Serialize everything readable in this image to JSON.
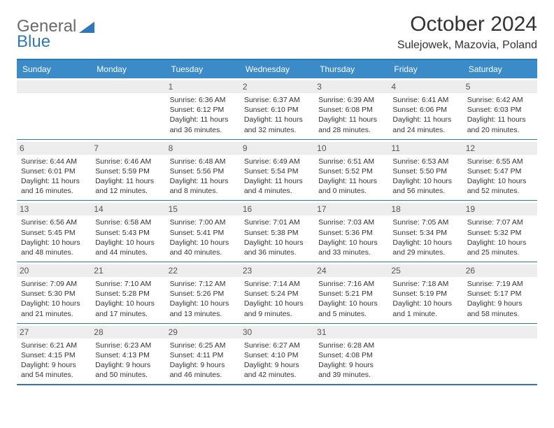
{
  "brand": {
    "part1": "General",
    "part2": "Blue"
  },
  "title": {
    "month": "October 2024",
    "location": "Sulejowek, Mazovia, Poland"
  },
  "colors": {
    "header_bg": "#3b8bc9",
    "header_border": "#2f77b6",
    "daynum_bg": "#ededed",
    "text": "#333333",
    "brand_gray": "#6a6a6a",
    "brand_blue": "#2f77b6"
  },
  "dayHeaders": [
    "Sunday",
    "Monday",
    "Tuesday",
    "Wednesday",
    "Thursday",
    "Friday",
    "Saturday"
  ],
  "weeks": [
    [
      {
        "n": "",
        "sr": "",
        "ss": "",
        "dl": ""
      },
      {
        "n": "",
        "sr": "",
        "ss": "",
        "dl": ""
      },
      {
        "n": "1",
        "sr": "Sunrise: 6:36 AM",
        "ss": "Sunset: 6:12 PM",
        "dl": "Daylight: 11 hours and 36 minutes."
      },
      {
        "n": "2",
        "sr": "Sunrise: 6:37 AM",
        "ss": "Sunset: 6:10 PM",
        "dl": "Daylight: 11 hours and 32 minutes."
      },
      {
        "n": "3",
        "sr": "Sunrise: 6:39 AM",
        "ss": "Sunset: 6:08 PM",
        "dl": "Daylight: 11 hours and 28 minutes."
      },
      {
        "n": "4",
        "sr": "Sunrise: 6:41 AM",
        "ss": "Sunset: 6:06 PM",
        "dl": "Daylight: 11 hours and 24 minutes."
      },
      {
        "n": "5",
        "sr": "Sunrise: 6:42 AM",
        "ss": "Sunset: 6:03 PM",
        "dl": "Daylight: 11 hours and 20 minutes."
      }
    ],
    [
      {
        "n": "6",
        "sr": "Sunrise: 6:44 AM",
        "ss": "Sunset: 6:01 PM",
        "dl": "Daylight: 11 hours and 16 minutes."
      },
      {
        "n": "7",
        "sr": "Sunrise: 6:46 AM",
        "ss": "Sunset: 5:59 PM",
        "dl": "Daylight: 11 hours and 12 minutes."
      },
      {
        "n": "8",
        "sr": "Sunrise: 6:48 AM",
        "ss": "Sunset: 5:56 PM",
        "dl": "Daylight: 11 hours and 8 minutes."
      },
      {
        "n": "9",
        "sr": "Sunrise: 6:49 AM",
        "ss": "Sunset: 5:54 PM",
        "dl": "Daylight: 11 hours and 4 minutes."
      },
      {
        "n": "10",
        "sr": "Sunrise: 6:51 AM",
        "ss": "Sunset: 5:52 PM",
        "dl": "Daylight: 11 hours and 0 minutes."
      },
      {
        "n": "11",
        "sr": "Sunrise: 6:53 AM",
        "ss": "Sunset: 5:50 PM",
        "dl": "Daylight: 10 hours and 56 minutes."
      },
      {
        "n": "12",
        "sr": "Sunrise: 6:55 AM",
        "ss": "Sunset: 5:47 PM",
        "dl": "Daylight: 10 hours and 52 minutes."
      }
    ],
    [
      {
        "n": "13",
        "sr": "Sunrise: 6:56 AM",
        "ss": "Sunset: 5:45 PM",
        "dl": "Daylight: 10 hours and 48 minutes."
      },
      {
        "n": "14",
        "sr": "Sunrise: 6:58 AM",
        "ss": "Sunset: 5:43 PM",
        "dl": "Daylight: 10 hours and 44 minutes."
      },
      {
        "n": "15",
        "sr": "Sunrise: 7:00 AM",
        "ss": "Sunset: 5:41 PM",
        "dl": "Daylight: 10 hours and 40 minutes."
      },
      {
        "n": "16",
        "sr": "Sunrise: 7:01 AM",
        "ss": "Sunset: 5:38 PM",
        "dl": "Daylight: 10 hours and 36 minutes."
      },
      {
        "n": "17",
        "sr": "Sunrise: 7:03 AM",
        "ss": "Sunset: 5:36 PM",
        "dl": "Daylight: 10 hours and 33 minutes."
      },
      {
        "n": "18",
        "sr": "Sunrise: 7:05 AM",
        "ss": "Sunset: 5:34 PM",
        "dl": "Daylight: 10 hours and 29 minutes."
      },
      {
        "n": "19",
        "sr": "Sunrise: 7:07 AM",
        "ss": "Sunset: 5:32 PM",
        "dl": "Daylight: 10 hours and 25 minutes."
      }
    ],
    [
      {
        "n": "20",
        "sr": "Sunrise: 7:09 AM",
        "ss": "Sunset: 5:30 PM",
        "dl": "Daylight: 10 hours and 21 minutes."
      },
      {
        "n": "21",
        "sr": "Sunrise: 7:10 AM",
        "ss": "Sunset: 5:28 PM",
        "dl": "Daylight: 10 hours and 17 minutes."
      },
      {
        "n": "22",
        "sr": "Sunrise: 7:12 AM",
        "ss": "Sunset: 5:26 PM",
        "dl": "Daylight: 10 hours and 13 minutes."
      },
      {
        "n": "23",
        "sr": "Sunrise: 7:14 AM",
        "ss": "Sunset: 5:24 PM",
        "dl": "Daylight: 10 hours and 9 minutes."
      },
      {
        "n": "24",
        "sr": "Sunrise: 7:16 AM",
        "ss": "Sunset: 5:21 PM",
        "dl": "Daylight: 10 hours and 5 minutes."
      },
      {
        "n": "25",
        "sr": "Sunrise: 7:18 AM",
        "ss": "Sunset: 5:19 PM",
        "dl": "Daylight: 10 hours and 1 minute."
      },
      {
        "n": "26",
        "sr": "Sunrise: 7:19 AM",
        "ss": "Sunset: 5:17 PM",
        "dl": "Daylight: 9 hours and 58 minutes."
      }
    ],
    [
      {
        "n": "27",
        "sr": "Sunrise: 6:21 AM",
        "ss": "Sunset: 4:15 PM",
        "dl": "Daylight: 9 hours and 54 minutes."
      },
      {
        "n": "28",
        "sr": "Sunrise: 6:23 AM",
        "ss": "Sunset: 4:13 PM",
        "dl": "Daylight: 9 hours and 50 minutes."
      },
      {
        "n": "29",
        "sr": "Sunrise: 6:25 AM",
        "ss": "Sunset: 4:11 PM",
        "dl": "Daylight: 9 hours and 46 minutes."
      },
      {
        "n": "30",
        "sr": "Sunrise: 6:27 AM",
        "ss": "Sunset: 4:10 PM",
        "dl": "Daylight: 9 hours and 42 minutes."
      },
      {
        "n": "31",
        "sr": "Sunrise: 6:28 AM",
        "ss": "Sunset: 4:08 PM",
        "dl": "Daylight: 9 hours and 39 minutes."
      },
      {
        "n": "",
        "sr": "",
        "ss": "",
        "dl": ""
      },
      {
        "n": "",
        "sr": "",
        "ss": "",
        "dl": ""
      }
    ]
  ]
}
